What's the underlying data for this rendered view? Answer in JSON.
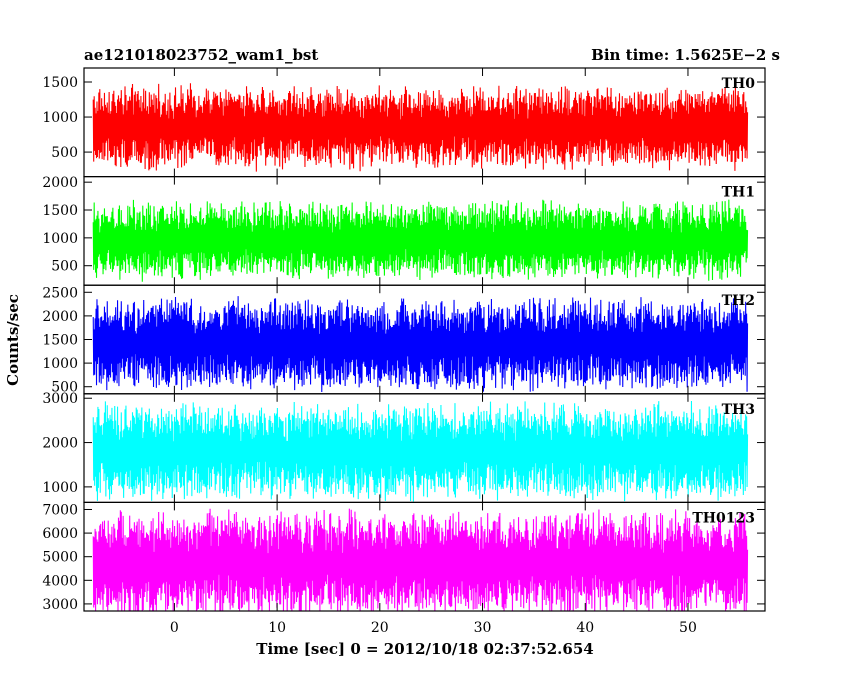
{
  "header": {
    "left": "ae121018023752_wam1_bst",
    "right": "Bin time: 1.5625E−2 s"
  },
  "chart_data": {
    "type": "line",
    "xlabel": "Time [sec] 0 = 2012/10/18 02:37:52.654",
    "ylabel": "Counts/sec",
    "xlim": [
      -8.8,
      57.5
    ],
    "x_data_range": [
      -7.9,
      55.8
    ],
    "x_ticks": [
      0,
      10,
      20,
      30,
      40,
      50
    ],
    "x_tick_labels": [
      "0",
      "10",
      "20",
      "30",
      "40",
      "50"
    ],
    "grid": false,
    "legend": "none",
    "panels": [
      {
        "name": "TH0",
        "color": "#ff0000",
        "ylim": [
          150,
          1700
        ],
        "yticks": [
          500,
          1000,
          1500
        ],
        "ytick_labels": [
          "500",
          "1000",
          "1500"
        ],
        "mean": 850,
        "spread": 550
      },
      {
        "name": "TH1",
        "color": "#00ff00",
        "ylim": [
          150,
          2100
        ],
        "yticks": [
          500,
          1000,
          1500,
          2000
        ],
        "ytick_labels": [
          "500",
          "1000",
          "1500",
          "2000"
        ],
        "mean": 950,
        "spread": 650
      },
      {
        "name": "TH2",
        "color": "#0000ff",
        "ylim": [
          350,
          2650
        ],
        "yticks": [
          500,
          1000,
          1500,
          2000,
          2500
        ],
        "ytick_labels": [
          "500",
          "1000",
          "1500",
          "2000",
          "2500"
        ],
        "mean": 1400,
        "spread": 900
      },
      {
        "name": "TH3",
        "color": "#00ffff",
        "ylim": [
          650,
          3100
        ],
        "yticks": [
          1000,
          2000,
          3000
        ],
        "ytick_labels": [
          "1000",
          "2000",
          "3000"
        ],
        "mean": 1800,
        "spread": 1000
      },
      {
        "name": "TH0123",
        "color": "#ff00ff",
        "ylim": [
          2700,
          7300
        ],
        "yticks": [
          3000,
          4000,
          5000,
          6000,
          7000
        ],
        "ytick_labels": [
          "3000",
          "4000",
          "5000",
          "6000",
          "7000"
        ],
        "mean": 4700,
        "spread": 2100
      }
    ]
  }
}
